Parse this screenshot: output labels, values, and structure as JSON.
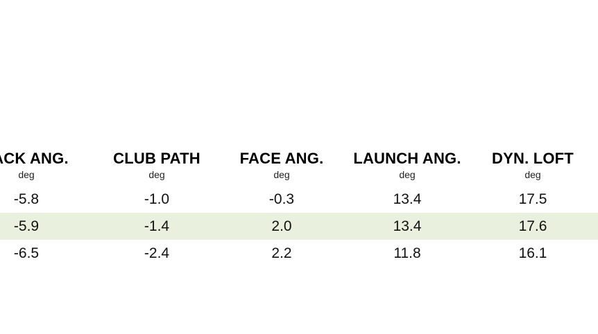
{
  "columns": [
    {
      "title": "TACK ANG.",
      "unit": "deg"
    },
    {
      "title": "CLUB PATH",
      "unit": "deg"
    },
    {
      "title": "FACE ANG.",
      "unit": "deg"
    },
    {
      "title": "LAUNCH ANG.",
      "unit": "deg"
    },
    {
      "title": "DYN. LOFT",
      "unit": "deg"
    }
  ],
  "rows": [
    {
      "values": [
        "-5.8",
        "-1.0",
        "-0.3",
        "13.4",
        "17.5"
      ],
      "highlighted": false
    },
    {
      "values": [
        "-5.9",
        "-1.4",
        "2.0",
        "13.4",
        "17.6"
      ],
      "highlighted": true
    },
    {
      "values": [
        "-6.5",
        "-2.4",
        "2.2",
        "11.8",
        "16.1"
      ],
      "highlighted": false
    }
  ],
  "colors": {
    "highlight_row": "#e9f0dd",
    "text": "#111111"
  }
}
